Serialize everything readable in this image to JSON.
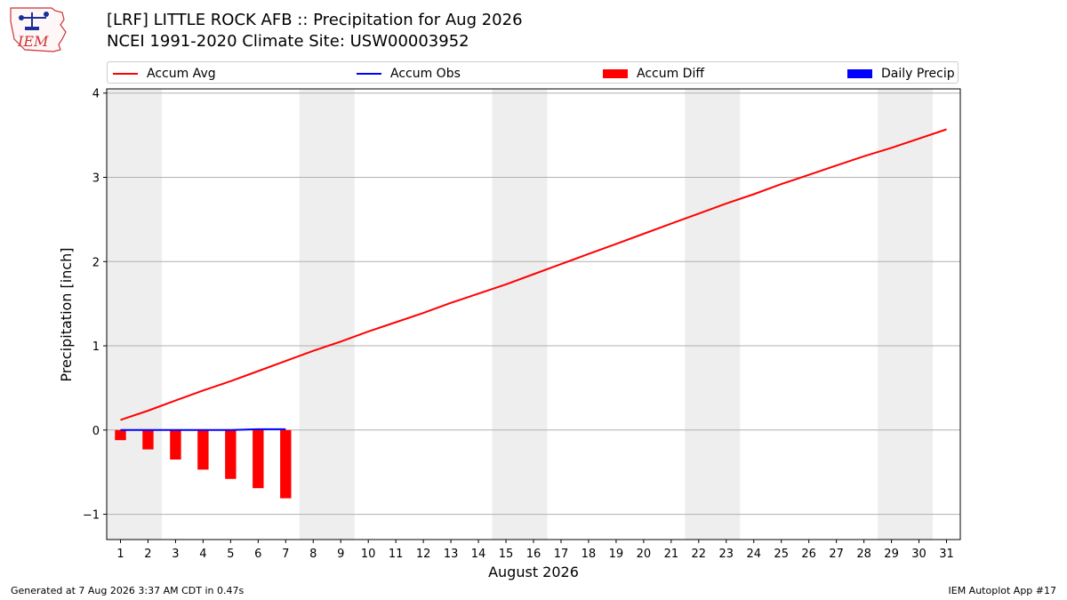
{
  "header": {
    "logo_text": "IEM",
    "title": "[LRF] LITTLE ROCK AFB :: Precipitation for Aug 2026",
    "subtitle": "NCEI 1991-2020 Climate Site: USW00003952"
  },
  "footer": {
    "left": "Generated at 7 Aug 2026 3:37 AM CDT in 0.47s",
    "right": "IEM Autoplot App #17"
  },
  "colors": {
    "avg": "#ff0000",
    "obs": "#0000ff",
    "diff": "#ff0000",
    "daily": "#0000ff",
    "weekend_band": "#eeeeee"
  },
  "chart_data": {
    "type": "bar",
    "xlabel": "August 2026",
    "ylabel": "Precipitation [inch]",
    "xlim": [
      0.5,
      31.5
    ],
    "ylim": [
      -1.3,
      4.05
    ],
    "x_ticks": [
      1,
      2,
      3,
      4,
      5,
      6,
      7,
      8,
      9,
      10,
      11,
      12,
      13,
      14,
      15,
      16,
      17,
      18,
      19,
      20,
      21,
      22,
      23,
      24,
      25,
      26,
      27,
      28,
      29,
      30,
      31
    ],
    "y_ticks": [
      -1,
      0,
      1,
      2,
      3,
      4
    ],
    "y_tick_labels": [
      "−1",
      "0",
      "1",
      "2",
      "3",
      "4"
    ],
    "grid": "horizontal",
    "legend_position": "top",
    "weekend_bands": [
      [
        0.5,
        2.5
      ],
      [
        7.5,
        9.5
      ],
      [
        14.5,
        16.5
      ],
      [
        21.5,
        23.5
      ],
      [
        28.5,
        30.5
      ]
    ],
    "series": [
      {
        "name": "Accum Avg",
        "kind": "line",
        "x": [
          1,
          2,
          3,
          4,
          5,
          6,
          7,
          8,
          9,
          10,
          11,
          12,
          13,
          14,
          15,
          16,
          17,
          18,
          19,
          20,
          21,
          22,
          23,
          24,
          25,
          26,
          27,
          28,
          29,
          30,
          31
        ],
        "values": [
          0.12,
          0.23,
          0.35,
          0.47,
          0.58,
          0.7,
          0.82,
          0.94,
          1.05,
          1.17,
          1.28,
          1.39,
          1.51,
          1.62,
          1.73,
          1.85,
          1.97,
          2.09,
          2.21,
          2.33,
          2.45,
          2.57,
          2.69,
          2.8,
          2.92,
          3.03,
          3.14,
          3.25,
          3.35,
          3.46,
          3.57
        ]
      },
      {
        "name": "Accum Obs",
        "kind": "line",
        "x": [
          1,
          2,
          3,
          4,
          5,
          6,
          7
        ],
        "values": [
          0.0,
          0.0,
          0.0,
          0.0,
          0.0,
          0.01,
          0.01
        ]
      },
      {
        "name": "Accum Diff",
        "kind": "bar",
        "x": [
          1,
          2,
          3,
          4,
          5,
          6,
          7
        ],
        "values": [
          -0.12,
          -0.23,
          -0.35,
          -0.47,
          -0.58,
          -0.69,
          -0.81
        ]
      },
      {
        "name": "Daily Precip",
        "kind": "bar",
        "x": [
          1,
          2,
          3,
          4,
          5,
          6,
          7
        ],
        "values": [
          0.0,
          0.0,
          0.0,
          0.0,
          0.0,
          0.01,
          0.0
        ]
      }
    ]
  }
}
